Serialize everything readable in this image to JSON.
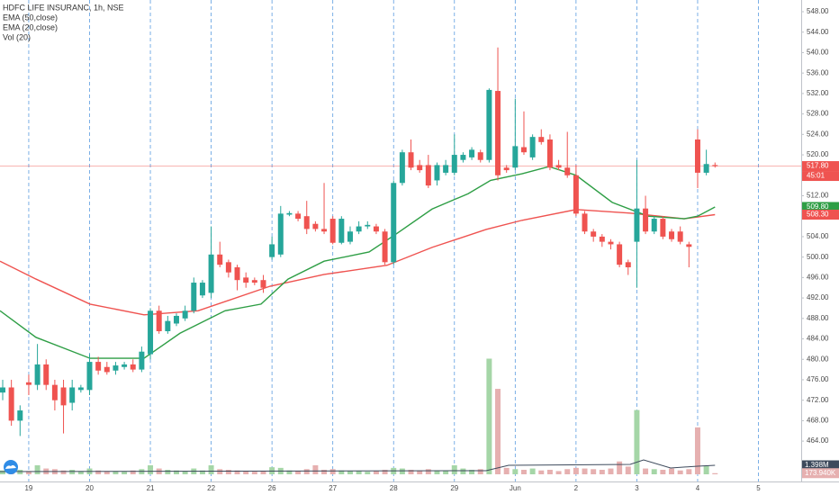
{
  "chart_data": {
    "type": "candlestick",
    "title": "HDFC LIFE INSURANC, 1h, NSE",
    "up_color": "#26a69a",
    "down_color": "#ef5350",
    "open": [
      473.5,
      474.5,
      468,
      475.5,
      475,
      479,
      475,
      474.5,
      471.5,
      474,
      474,
      479.5,
      478.5,
      477.8,
      478.5,
      479,
      478,
      481,
      489.5,
      485.5,
      487,
      488,
      489.5,
      492.5,
      493,
      500.5,
      499,
      498,
      496,
      495.5,
      495.5,
      500,
      500.5,
      508.3,
      508.5,
      508,
      506.5,
      505.5,
      507.5,
      502.8,
      503,
      505,
      506,
      506,
      505,
      499,
      514.5,
      520.5,
      518,
      518,
      515,
      516.5,
      516.5,
      519,
      519.5,
      520.5,
      519,
      532.5,
      517.5,
      517.5,
      521.5,
      519.5,
      523.5,
      523,
      518,
      517.5,
      516,
      508.5,
      505,
      504,
      503,
      502.5,
      499,
      503,
      509.5,
      505,
      507.5,
      505,
      505,
      502.5,
      523,
      516.5,
      518
    ],
    "high": [
      476,
      476,
      471,
      477,
      483,
      480,
      476,
      476,
      476,
      475,
      481,
      480.5,
      479.5,
      479.5,
      479.5,
      480,
      482.5,
      490,
      490.5,
      488.5,
      489,
      490.5,
      496,
      495.5,
      506,
      503,
      499.5,
      498.5,
      497,
      496,
      496.5,
      504,
      510,
      509,
      509,
      511,
      507,
      514.5,
      508,
      508,
      506,
      507,
      507,
      506.5,
      505.5,
      515,
      521,
      523,
      519,
      520,
      518.5,
      519,
      524,
      520.5,
      521.5,
      521,
      533,
      541,
      518,
      531,
      528.5,
      524,
      525,
      524,
      519,
      524.5,
      518,
      509,
      505.5,
      504.5,
      503.5,
      503,
      499.5,
      519,
      512,
      508,
      508,
      505.5,
      506,
      503,
      525,
      521,
      518.5
    ],
    "low": [
      472,
      467,
      465,
      473,
      474,
      474,
      470,
      465.5,
      470,
      473.5,
      473,
      477,
      477,
      477,
      478,
      477.5,
      477.5,
      480,
      485,
      485,
      486.5,
      487.5,
      489,
      492,
      492,
      498,
      496,
      493.5,
      494,
      494.5,
      493,
      499.5,
      500,
      508,
      507,
      504.5,
      505,
      504.5,
      502.5,
      502.5,
      502.5,
      504.5,
      505.5,
      504.5,
      498.5,
      498.5,
      514,
      517,
      516.5,
      513.5,
      514,
      516,
      516,
      518.5,
      519,
      518.5,
      518.5,
      515,
      516.5,
      517,
      520,
      519,
      522,
      517,
      517,
      515.5,
      508,
      504.5,
      503,
      502,
      501.5,
      498,
      496.5,
      494,
      504.5,
      504.5,
      503.5,
      503,
      502.5,
      498,
      513.5,
      516,
      517.5
    ],
    "close": [
      474.5,
      468,
      470,
      475,
      479,
      475,
      472,
      471,
      474.5,
      474.5,
      479.5,
      477.8,
      477.5,
      478.8,
      479,
      478,
      481.5,
      489.5,
      485.5,
      487.5,
      488.5,
      489.5,
      495,
      495,
      500.5,
      498.5,
      497,
      495.5,
      495,
      495,
      494,
      502.5,
      508.5,
      508.6,
      507.5,
      505.5,
      505.5,
      505,
      502.8,
      507.5,
      505,
      506,
      506.3,
      505,
      499,
      514.5,
      520.5,
      517.5,
      517,
      514,
      518,
      518,
      520,
      520,
      521,
      519,
      532.7,
      516,
      517,
      521.7,
      520.5,
      523.5,
      522.5,
      517.5,
      517.5,
      516,
      508.5,
      505,
      504,
      503,
      502.5,
      498.5,
      498,
      509.5,
      505,
      507.5,
      504,
      503.5,
      503,
      502,
      516.5,
      518.2,
      517.8
    ],
    "volume": {
      "name": "Vol (20)",
      "up_color": "#a5d6a7",
      "down_color": "#e6b0b0",
      "values": [
        600000,
        900000,
        700000,
        500000,
        1400000,
        900000,
        800000,
        600000,
        700000,
        500000,
        900000,
        600000,
        500000,
        500000,
        400000,
        600000,
        800000,
        1400000,
        900000,
        700000,
        600000,
        500000,
        900000,
        600000,
        1400000,
        800000,
        700000,
        600000,
        500000,
        400000,
        500000,
        1100000,
        1000000,
        600000,
        500000,
        800000,
        1400000,
        700000,
        800000,
        600000,
        500000,
        500000,
        400000,
        500000,
        700000,
        1000000,
        900000,
        700000,
        600000,
        800000,
        600000,
        500000,
        1400000,
        900000,
        700000,
        800000,
        18000000,
        13300000,
        1000000,
        800000,
        700000,
        900000,
        600000,
        700000,
        500000,
        800000,
        1000000,
        900000,
        800000,
        700000,
        900000,
        2000000,
        1200000,
        10000000,
        900000,
        800000,
        700000,
        900000,
        600000,
        800000,
        7300000,
        1300000,
        173940
      ],
      "avg_color": "#3d4a5c",
      "avg_x": [
        -0.31,
        55.65,
        58.24,
        72.23,
        73.78,
        76.89,
        80,
        82
      ],
      "avg": [
        420000,
        560000,
        1400000,
        1540000,
        2240000,
        980000,
        1260000,
        1398000
      ]
    },
    "vlim": [
      0,
      72000000
    ],
    "vol_tags": [
      {
        "value": 1398000,
        "label": "1.398M",
        "color": "#3d4a5c"
      },
      {
        "value": 173940,
        "label": "173.940K",
        "color": "#e6b0b0"
      }
    ],
    "series": [
      {
        "name": "EMA (50,close)",
        "color": "#ef5350",
        "x": [
          -0.31,
          3.83,
          10.05,
          16.27,
          22.49,
          30.78,
          37,
          44.25,
          49.43,
          55.65,
          59.79,
          66.01,
          72.23,
          78.45,
          82
        ],
        "values": [
          499.2,
          495.7,
          490.8,
          488.7,
          489.5,
          494.3,
          496.6,
          498.4,
          501.9,
          505.4,
          507.2,
          509.3,
          508.6,
          507.5,
          508.3
        ]
      },
      {
        "name": "EMA (20,close)",
        "color": "#2e9e45",
        "x": [
          -0.31,
          3.83,
          10.05,
          16.27,
          20.41,
          25.6,
          29.74,
          32.85,
          37,
          42.18,
          45.28,
          49.43,
          53.58,
          56.17,
          59.79,
          62.9,
          66.01,
          70.16,
          74.3,
          78.45,
          80,
          82
        ],
        "values": [
          489.5,
          484.3,
          480.2,
          480.2,
          485.1,
          489.5,
          490.8,
          495.7,
          499.2,
          501,
          504.5,
          509.4,
          512.4,
          515,
          516.3,
          517.7,
          516,
          510.7,
          508,
          507.5,
          508,
          509.8
        ]
      }
    ],
    "price_tags": [
      {
        "value": 517.8,
        "label": "517.80",
        "color": "#ef5350"
      },
      {
        "value": 509.8,
        "label": "509.80",
        "color": "#2e9e45"
      },
      {
        "value": 508.3,
        "label": "508.30",
        "color": "#ef5350"
      }
    ],
    "countdown": "45:01",
    "xlim": [
      -0.31,
      91.92
    ],
    "xticks": [
      {
        "value": 3,
        "label": "19"
      },
      {
        "value": 10,
        "label": "20"
      },
      {
        "value": 17,
        "label": "21"
      },
      {
        "value": 24,
        "label": "22"
      },
      {
        "value": 31,
        "label": "26"
      },
      {
        "value": 38,
        "label": "27"
      },
      {
        "value": 45,
        "label": "28"
      },
      {
        "value": 52,
        "label": "29"
      },
      {
        "value": 59,
        "label": "Jun"
      },
      {
        "value": 66,
        "label": "2"
      },
      {
        "value": 73,
        "label": "3"
      },
      {
        "value": 80,
        "label": "4"
      },
      {
        "value": 87,
        "label": "5"
      }
    ],
    "ylim": [
      456.1,
      550.29
    ],
    "yticks": [
      {
        "value": 464,
        "label": "464.00"
      },
      {
        "value": 468,
        "label": "468.00"
      },
      {
        "value": 472,
        "label": "472.00"
      },
      {
        "value": 476,
        "label": "476.00"
      },
      {
        "value": 480,
        "label": "480.00"
      },
      {
        "value": 484,
        "label": "484.00"
      },
      {
        "value": 488,
        "label": "488.00"
      },
      {
        "value": 492,
        "label": "492.00"
      },
      {
        "value": 496,
        "label": "496.00"
      },
      {
        "value": 500,
        "label": "500.00"
      },
      {
        "value": 504,
        "label": "504.00"
      },
      {
        "value": 508,
        "label": "508.00"
      },
      {
        "value": 512,
        "label": "512.00"
      },
      {
        "value": 516,
        "label": "516.00"
      },
      {
        "value": 520,
        "label": "520.00"
      },
      {
        "value": 524,
        "label": "524.00"
      },
      {
        "value": 528,
        "label": "528.00"
      },
      {
        "value": 532,
        "label": "532.00"
      },
      {
        "value": 536,
        "label": "536.00"
      },
      {
        "value": 540,
        "label": "540.00"
      },
      {
        "value": 544,
        "label": "544.00"
      },
      {
        "value": 548,
        "label": "548.00"
      }
    ],
    "xgrid": true,
    "ygrid": false
  }
}
